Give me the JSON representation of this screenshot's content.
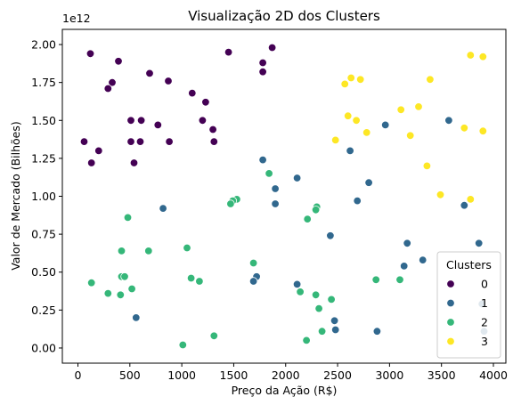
{
  "chart_data": {
    "type": "scatter",
    "title": "Visualização 2D dos Clusters",
    "xlabel": "Preço da Ação (R$)",
    "ylabel": "Valor de Mercado (Bilhões)",
    "y_offset_label": "1e12",
    "xlim": [
      -150,
      4120
    ],
    "ylim": [
      -100000000000.0,
      2100000000000.0
    ],
    "xticks": [
      0,
      500,
      1000,
      1500,
      2000,
      2500,
      3000,
      3500,
      4000
    ],
    "xtick_labels": [
      "0",
      "500",
      "1000",
      "1500",
      "2000",
      "2500",
      "3000",
      "3500",
      "4000"
    ],
    "yticks": [
      0,
      250000000000.0,
      500000000000.0,
      750000000000.0,
      1000000000000.0,
      1250000000000.0,
      1500000000000.0,
      1750000000000.0,
      2000000000000.0
    ],
    "ytick_labels": [
      "0.00",
      "0.25",
      "0.50",
      "0.75",
      "1.00",
      "1.25",
      "1.50",
      "1.75",
      "2.00"
    ],
    "legend": {
      "title": "Clusters",
      "position": "lower-right"
    },
    "grid": false,
    "series": [
      {
        "name": "0",
        "color": "#440154",
        "points": [
          [
            120,
            1940000000000.0
          ],
          [
            390,
            1890000000000.0
          ],
          [
            1450,
            1950000000000.0
          ],
          [
            1870,
            1980000000000.0
          ],
          [
            1780,
            1880000000000.0
          ],
          [
            1780,
            1820000000000.0
          ],
          [
            690,
            1810000000000.0
          ],
          [
            330,
            1750000000000.0
          ],
          [
            290,
            1710000000000.0
          ],
          [
            870,
            1760000000000.0
          ],
          [
            1100,
            1680000000000.0
          ],
          [
            1230,
            1620000000000.0
          ],
          [
            510,
            1500000000000.0
          ],
          [
            610,
            1500000000000.0
          ],
          [
            1200,
            1500000000000.0
          ],
          [
            770,
            1470000000000.0
          ],
          [
            1300,
            1440000000000.0
          ],
          [
            60,
            1360000000000.0
          ],
          [
            510,
            1360000000000.0
          ],
          [
            600,
            1360000000000.0
          ],
          [
            880,
            1360000000000.0
          ],
          [
            1310,
            1360000000000.0
          ],
          [
            200,
            1300000000000.0
          ],
          [
            130,
            1220000000000.0
          ],
          [
            540,
            1220000000000.0
          ]
        ]
      },
      {
        "name": "1",
        "color": "#31688e",
        "points": [
          [
            2960,
            1470000000000.0
          ],
          [
            3570,
            1500000000000.0
          ],
          [
            2620,
            1300000000000.0
          ],
          [
            1780,
            1240000000000.0
          ],
          [
            2110,
            1120000000000.0
          ],
          [
            2800,
            1090000000000.0
          ],
          [
            1900,
            1050000000000.0
          ],
          [
            2690,
            970000000000.0
          ],
          [
            1900,
            950000000000.0
          ],
          [
            3720,
            940000000000.0
          ],
          [
            820,
            920000000000.0
          ],
          [
            2430,
            740000000000.0
          ],
          [
            3170,
            690000000000.0
          ],
          [
            3860,
            690000000000.0
          ],
          [
            3320,
            580000000000.0
          ],
          [
            3140,
            540000000000.0
          ],
          [
            1720,
            470000000000.0
          ],
          [
            1690,
            440000000000.0
          ],
          [
            2110,
            420000000000.0
          ],
          [
            3890,
            290000000000.0
          ],
          [
            560,
            200000000000.0
          ],
          [
            2470,
            180000000000.0
          ],
          [
            2480,
            120000000000.0
          ],
          [
            2880,
            110000000000.0
          ],
          [
            3910,
            110000000000.0
          ]
        ]
      },
      {
        "name": "2",
        "color": "#35b779",
        "points": [
          [
            1840,
            1150000000000.0
          ],
          [
            1530,
            980000000000.0
          ],
          [
            1490,
            970000000000.0
          ],
          [
            1470,
            950000000000.0
          ],
          [
            2300,
            930000000000.0
          ],
          [
            2290,
            910000000000.0
          ],
          [
            2210,
            850000000000.0
          ],
          [
            480,
            860000000000.0
          ],
          [
            1050,
            660000000000.0
          ],
          [
            420,
            640000000000.0
          ],
          [
            680,
            640000000000.0
          ],
          [
            1690,
            560000000000.0
          ],
          [
            420,
            470000000000.0
          ],
          [
            450,
            470000000000.0
          ],
          [
            1090,
            460000000000.0
          ],
          [
            2870,
            450000000000.0
          ],
          [
            3100,
            450000000000.0
          ],
          [
            130,
            430000000000.0
          ],
          [
            1170,
            440000000000.0
          ],
          [
            520,
            390000000000.0
          ],
          [
            290,
            360000000000.0
          ],
          [
            410,
            350000000000.0
          ],
          [
            2140,
            370000000000.0
          ],
          [
            2290,
            350000000000.0
          ],
          [
            2440,
            320000000000.0
          ],
          [
            2320,
            260000000000.0
          ],
          [
            2350,
            110000000000.0
          ],
          [
            1310,
            80000000000.0
          ],
          [
            2200,
            50000000000.0
          ],
          [
            1010,
            20000000000.0
          ]
        ]
      },
      {
        "name": "3",
        "color": "#fde725",
        "points": [
          [
            3780,
            1930000000000.0
          ],
          [
            3900,
            1920000000000.0
          ],
          [
            2630,
            1780000000000.0
          ],
          [
            2720,
            1770000000000.0
          ],
          [
            3390,
            1770000000000.0
          ],
          [
            2570,
            1740000000000.0
          ],
          [
            3110,
            1570000000000.0
          ],
          [
            3280,
            1590000000000.0
          ],
          [
            2600,
            1530000000000.0
          ],
          [
            2680,
            1500000000000.0
          ],
          [
            2780,
            1420000000000.0
          ],
          [
            3900,
            1430000000000.0
          ],
          [
            3720,
            1450000000000.0
          ],
          [
            3200,
            1400000000000.0
          ],
          [
            2480,
            1370000000000.0
          ],
          [
            3360,
            1200000000000.0
          ],
          [
            3490,
            1010000000000.0
          ],
          [
            3780,
            980000000000.0
          ]
        ]
      }
    ]
  }
}
